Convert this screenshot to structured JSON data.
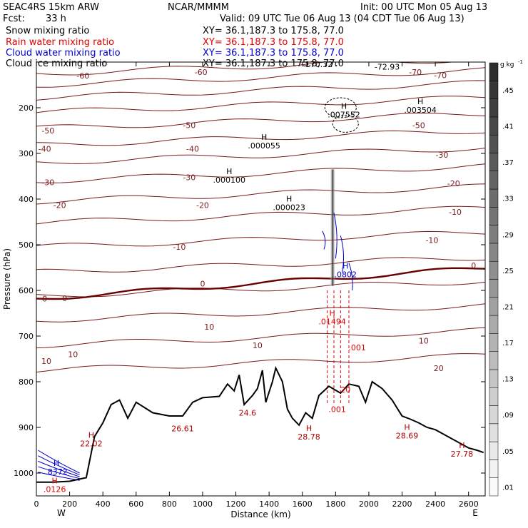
{
  "header": {
    "model": "SEAC4RS 15km ARW",
    "org": "NCAR/MMMM",
    "init": "Init: 00 UTC Mon 05 Aug 13",
    "fcst_label": "Fcst:",
    "fcst_value": "33 h",
    "valid": "Valid: 09 UTC Tue 06 Aug 13 (04 CDT Tue 06 Aug 13)",
    "fields": [
      {
        "name": "Snow mixing ratio",
        "xy": "XY=  36.1,187.3 to 175.8, 77.0",
        "color": "#000000"
      },
      {
        "name": "Rain water mixing ratio",
        "xy": "XY=  36.1,187.3 to 175.8, 77.0",
        "color": "#e00000"
      },
      {
        "name": "Cloud water mixing ratio",
        "xy": "XY=  36.1,187.3 to 175.8, 77.0",
        "color": "#0000cc"
      },
      {
        "name": "Cloud ice mixing ratio",
        "xy": "XY=  36.1,187.3 to 175.8, 77.0",
        "color": "#000000"
      }
    ]
  },
  "chart_data": {
    "type": "cross-section",
    "xlabel": "Distance (km)",
    "ylabel": "Pressure (hPa)",
    "xlim": [
      0,
      2700
    ],
    "ylim": [
      1050,
      100
    ],
    "x_ticks": [
      0,
      200,
      400,
      600,
      800,
      1000,
      1200,
      1400,
      1600,
      1800,
      2000,
      2200,
      2400,
      2600
    ],
    "y_ticks": [
      200,
      300,
      400,
      500,
      600,
      700,
      800,
      900,
      1000
    ],
    "x_end_labels": {
      "left": "W",
      "right": "E"
    },
    "colorbar": {
      "unit": "g kg",
      "unit_exp": "-1",
      "labels": [
        ".45",
        ".41",
        ".37",
        ".33",
        ".29",
        ".25",
        ".21",
        ".17",
        ".13",
        ".09",
        ".05",
        ".01"
      ],
      "levels": [
        0.01,
        0.03,
        0.05,
        0.07,
        0.09,
        0.11,
        0.13,
        0.15,
        0.17,
        0.19,
        0.21,
        0.23,
        0.25,
        0.27,
        0.29,
        0.31,
        0.33,
        0.35,
        0.37,
        0.39,
        0.41,
        0.43,
        0.45,
        0.47
      ]
    },
    "temperature_labels": [
      {
        "x": 50,
        "p": 618,
        "text": "0"
      },
      {
        "x": 170,
        "p": 617,
        "text": "0"
      },
      {
        "x": 1000,
        "p": 585,
        "text": "0"
      },
      {
        "x": 2630,
        "p": 545,
        "text": "0"
      },
      {
        "x": 280,
        "p": 130,
        "text": "-60"
      },
      {
        "x": 990,
        "p": 122,
        "text": "-60"
      },
      {
        "x": 2280,
        "p": 122,
        "text": "-70"
      },
      {
        "x": 2430,
        "p": 129,
        "text": "-70"
      },
      {
        "x": 70,
        "p": 250,
        "text": "-50"
      },
      {
        "x": 920,
        "p": 238,
        "text": "-50"
      },
      {
        "x": 2300,
        "p": 238,
        "text": "-50"
      },
      {
        "x": 50,
        "p": 290,
        "text": "-40"
      },
      {
        "x": 940,
        "p": 290,
        "text": "-40"
      },
      {
        "x": 2440,
        "p": 303,
        "text": "-30"
      },
      {
        "x": 70,
        "p": 363,
        "text": "-30"
      },
      {
        "x": 920,
        "p": 352,
        "text": "-30"
      },
      {
        "x": 2510,
        "p": 366,
        "text": "-20"
      },
      {
        "x": 140,
        "p": 413,
        "text": "-20"
      },
      {
        "x": 1000,
        "p": 413,
        "text": "-20"
      },
      {
        "x": 2520,
        "p": 428,
        "text": "-10"
      },
      {
        "x": 860,
        "p": 505,
        "text": "-10"
      },
      {
        "x": 2380,
        "p": 490,
        "text": "-10"
      },
      {
        "x": 1040,
        "p": 680,
        "text": "10"
      },
      {
        "x": 60,
        "p": 755,
        "text": "10"
      },
      {
        "x": 220,
        "p": 740,
        "text": "10"
      },
      {
        "x": 1330,
        "p": 720,
        "text": "10"
      },
      {
        "x": 2330,
        "p": 710,
        "text": "10"
      },
      {
        "x": 2420,
        "p": 770,
        "text": "20"
      }
    ],
    "extremum_labels": [
      {
        "x": 1370,
        "p": 283,
        "mark": "H",
        "value": ".000055",
        "color": "#000000"
      },
      {
        "x": 1160,
        "p": 358,
        "mark": "H",
        "value": ".000100",
        "color": "#000000"
      },
      {
        "x": 1520,
        "p": 418,
        "mark": "H",
        "value": ".000023",
        "color": "#000000"
      },
      {
        "x": 1850,
        "p": 215,
        "mark": "H",
        "value": ".007552",
        "color": "#000000"
      },
      {
        "x": 2310,
        "p": 205,
        "mark": "H",
        "value": ".003504",
        "color": "#000000"
      },
      {
        "x": 1860,
        "p": 565,
        "mark": "H",
        "value": ".0802",
        "color": "#0000cc"
      },
      {
        "x": 1780,
        "p": 668,
        "mark": "H",
        "value": ".01494",
        "color": "#e00000"
      },
      {
        "x": 1930,
        "p": 725,
        "mark": "",
        "value": ".001",
        "color": "#e00000"
      },
      {
        "x": 1810,
        "p": 860,
        "mark": "",
        "value": ".001",
        "color": "#e00000"
      },
      {
        "x": 1860,
        "p": 817,
        "mark": "",
        "value": "20",
        "color": "#e00000"
      },
      {
        "x": 120,
        "p": 997,
        "mark": "H",
        "value": ".8372",
        "color": "#0000cc"
      },
      {
        "x": 110,
        "p": 1035,
        "mark": "H",
        "value": ".0126",
        "color": "#e00000"
      },
      {
        "x": 330,
        "p": 935,
        "mark": "H",
        "value": "22.02",
        "color": "#b00000"
      },
      {
        "x": 880,
        "p": 902,
        "mark": "",
        "value": "26.61",
        "color": "#b00000"
      },
      {
        "x": 1270,
        "p": 868,
        "mark": "",
        "value": "24.6",
        "color": "#b00000"
      },
      {
        "x": 1640,
        "p": 920,
        "mark": "H",
        "value": "28.78",
        "color": "#b00000"
      },
      {
        "x": 2230,
        "p": 918,
        "mark": "H",
        "value": "28.69",
        "color": "#b00000"
      },
      {
        "x": 2560,
        "p": 958,
        "mark": "H",
        "value": "27.78",
        "color": "#b00000"
      }
    ],
    "top_labels": [
      {
        "x": 1700,
        "p": 105,
        "text": "170.32",
        "color": "#000000"
      },
      {
        "x": 2110,
        "p": 110,
        "text": "-72.93",
        "color": "#000000"
      }
    ],
    "terrain_pressure": [
      [
        0,
        1020
      ],
      [
        100,
        1020
      ],
      [
        200,
        1018
      ],
      [
        300,
        1010
      ],
      [
        350,
        920
      ],
      [
        400,
        890
      ],
      [
        450,
        850
      ],
      [
        500,
        840
      ],
      [
        550,
        880
      ],
      [
        600,
        845
      ],
      [
        700,
        868
      ],
      [
        800,
        875
      ],
      [
        880,
        875
      ],
      [
        940,
        845
      ],
      [
        1000,
        835
      ],
      [
        1100,
        832
      ],
      [
        1150,
        805
      ],
      [
        1190,
        820
      ],
      [
        1220,
        785
      ],
      [
        1250,
        850
      ],
      [
        1300,
        830
      ],
      [
        1330,
        815
      ],
      [
        1360,
        775
      ],
      [
        1380,
        845
      ],
      [
        1420,
        800
      ],
      [
        1440,
        770
      ],
      [
        1480,
        800
      ],
      [
        1510,
        860
      ],
      [
        1540,
        880
      ],
      [
        1580,
        895
      ],
      [
        1620,
        868
      ],
      [
        1660,
        880
      ],
      [
        1700,
        830
      ],
      [
        1760,
        810
      ],
      [
        1830,
        825
      ],
      [
        1880,
        805
      ],
      [
        1940,
        810
      ],
      [
        1980,
        845
      ],
      [
        2020,
        800
      ],
      [
        2080,
        815
      ],
      [
        2140,
        840
      ],
      [
        2200,
        875
      ],
      [
        2250,
        882
      ],
      [
        2300,
        890
      ],
      [
        2350,
        900
      ],
      [
        2400,
        905
      ],
      [
        2450,
        915
      ],
      [
        2500,
        925
      ],
      [
        2550,
        935
      ],
      [
        2600,
        945
      ],
      [
        2650,
        950
      ],
      [
        2690,
        955
      ]
    ]
  }
}
